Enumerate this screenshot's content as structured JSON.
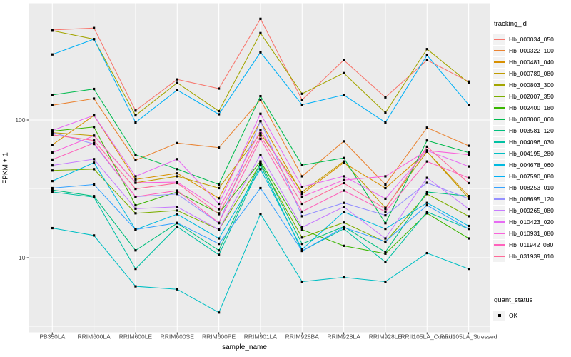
{
  "chart_data": {
    "type": "line",
    "title": "",
    "xlabel": "sample_name",
    "ylabel": "FPKM + 1",
    "y_scale": "log10",
    "y_ticks": [
      10,
      100
    ],
    "y_minor_ticks": [
      3.162,
      31.62,
      316.2
    ],
    "ylim": [
      2.3,
      700
    ],
    "grid": "on",
    "legend_position": "right",
    "point_shape": "filled-square",
    "point_color": "#000000",
    "categories": [
      "PB350LA",
      "RRIM600LA",
      "RRIM600LE",
      "RRIM600SE",
      "RRIM600PE",
      "RRIM901LA",
      "RRIM928BA",
      "RRIM928LA",
      "RRIM928LE",
      "RRII105LA_Control",
      "RRII105LA_Stressed"
    ],
    "legend": {
      "color_title": "tracking_id",
      "shape_title": "quant_status",
      "shape_entries": [
        "OK"
      ]
    },
    "series": [
      {
        "name": "Hb_000034_050",
        "color": "#F8766D",
        "values": [
          450,
          465,
          117,
          197,
          169,
          542,
          140,
          272,
          146,
          272,
          190
        ]
      },
      {
        "name": "Hb_000322_100",
        "color": "#EA8331",
        "values": [
          128,
          143,
          51,
          68,
          63,
          140,
          39,
          70,
          34,
          88,
          65
        ]
      },
      {
        "name": "Hb_000481_040",
        "color": "#D89000",
        "values": [
          66,
          108,
          37,
          41,
          27,
          98,
          29,
          49,
          32,
          59,
          28
        ]
      },
      {
        "name": "Hb_000789_080",
        "color": "#C09B00",
        "values": [
          81,
          77,
          35,
          39,
          32,
          80,
          30,
          50,
          23,
          59,
          27
        ]
      },
      {
        "name": "Hb_000803_300",
        "color": "#A3A500",
        "values": [
          445,
          386,
          108,
          186,
          116,
          427,
          155,
          219,
          113,
          327,
          186
        ]
      },
      {
        "name": "Hb_002007_350",
        "color": "#7CAE00",
        "values": [
          43,
          44,
          21,
          22,
          16,
          48,
          14,
          18,
          13,
          29,
          20
        ]
      },
      {
        "name": "Hb_002400_180",
        "color": "#39B600",
        "values": [
          83,
          89,
          24,
          30,
          21,
          50,
          16,
          12.2,
          10.7,
          21,
          13.8
        ]
      },
      {
        "name": "Hb_003006_060",
        "color": "#00BB4E",
        "values": [
          152,
          168,
          56,
          44,
          34,
          149,
          47,
          53,
          17.8,
          71,
          58
        ]
      },
      {
        "name": "Hb_003581_120",
        "color": "#00BF7D",
        "values": [
          31,
          28,
          11.3,
          17.8,
          11.3,
          49,
          12.6,
          16.8,
          11,
          30,
          28
        ]
      },
      {
        "name": "Hb_004096_030",
        "color": "#00C1A3",
        "values": [
          30,
          27.5,
          8.3,
          16.8,
          10.5,
          47,
          11.2,
          16.2,
          9.3,
          21.5,
          16.2
        ]
      },
      {
        "name": "Hb_004195_280",
        "color": "#00BFC4",
        "values": [
          16.4,
          14.5,
          6.2,
          5.9,
          4.0,
          20.8,
          6.7,
          7.2,
          6.7,
          10.8,
          8.3
        ]
      },
      {
        "name": "Hb_004678_060",
        "color": "#00BAE0",
        "values": [
          36,
          49,
          16,
          20.7,
          13.8,
          44,
          11.5,
          21.5,
          16.2,
          25,
          17
        ]
      },
      {
        "name": "Hb_007590_080",
        "color": "#00B0F6",
        "values": [
          299,
          386,
          96,
          165,
          110,
          310,
          129,
          152,
          96,
          295,
          129
        ]
      },
      {
        "name": "Hb_008253_010",
        "color": "#35A2FF",
        "values": [
          32,
          34,
          16,
          17.9,
          12.6,
          32,
          11.2,
          16.6,
          13.1,
          24,
          16.2
        ]
      },
      {
        "name": "Hb_008695_120",
        "color": "#9590FF",
        "values": [
          81,
          67,
          27.7,
          29,
          17.8,
          98,
          20,
          25,
          20.3,
          35,
          26.8
        ]
      },
      {
        "name": "Hb_009265_080",
        "color": "#C77CFF",
        "values": [
          46.8,
          52,
          22.7,
          23.4,
          16,
          56,
          16.6,
          23.4,
          13.8,
          38,
          22.6
        ]
      },
      {
        "name": "Hb_010423_020",
        "color": "#E76BF3",
        "values": [
          84,
          108,
          39,
          52,
          24.6,
          111,
          32.7,
          39,
          26.8,
          60,
          46
        ]
      },
      {
        "name": "Hb_010931_080",
        "color": "#FA62DB",
        "values": [
          58,
          77,
          35,
          35.4,
          22.5,
          84,
          27.7,
          36.6,
          39,
          60,
          56
        ]
      },
      {
        "name": "Hb_011942_080",
        "color": "#FF62BC",
        "values": [
          51.6,
          68,
          27.7,
          30.7,
          17.9,
          73,
          21.6,
          30.7,
          21.6,
          50,
          38
        ]
      },
      {
        "name": "Hb_031939_010",
        "color": "#FF6A98",
        "values": [
          78,
          71,
          31.6,
          34.8,
          20.7,
          77,
          24.6,
          34.8,
          22.6,
          64,
          34.8
        ]
      }
    ]
  },
  "style": {
    "panel_bg": "#EBEBEB",
    "grid_color": "#FFFFFF",
    "tick_color": "#333333",
    "tick_label_color": "#4D4D4D",
    "axis_title_color": "#000000",
    "legend_key_bg": "#F2F2F2",
    "point_color": "#000000"
  }
}
